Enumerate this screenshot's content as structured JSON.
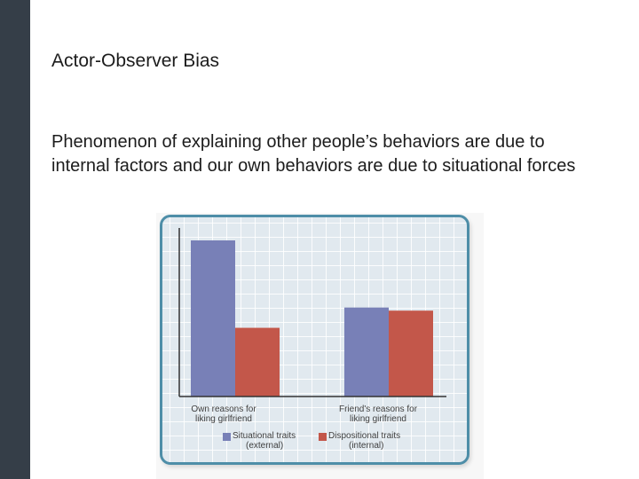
{
  "slide": {
    "title": "Actor-Observer Bias",
    "body": "Phenomenon of explaining other people’s behaviors are due to internal factors and our own behaviors are due to situational forces"
  },
  "chart_data": {
    "type": "bar",
    "categories": [
      "Own reasons for liking girlfriend",
      "Friend's reasons for liking girlfriend"
    ],
    "series": [
      {
        "name": "Situational traits (external)",
        "values": [
          100,
          57
        ],
        "color": "#7880b7"
      },
      {
        "name": "Dispositional traits (internal)",
        "values": [
          44,
          55
        ],
        "color": "#c3574a"
      }
    ],
    "ylim": [
      0,
      100
    ],
    "grid": true,
    "legend": "bottom",
    "category_labels": [
      {
        "line1": "Own reasons for",
        "line2": "liking girlfriend"
      },
      {
        "line1": "Friend's reasons for",
        "line2": "liking girlfriend"
      }
    ],
    "legend_labels": [
      {
        "line1": "Situational traits",
        "line2": "(external)"
      },
      {
        "line1": "Dispositional traits",
        "line2": "(internal)"
      }
    ]
  }
}
